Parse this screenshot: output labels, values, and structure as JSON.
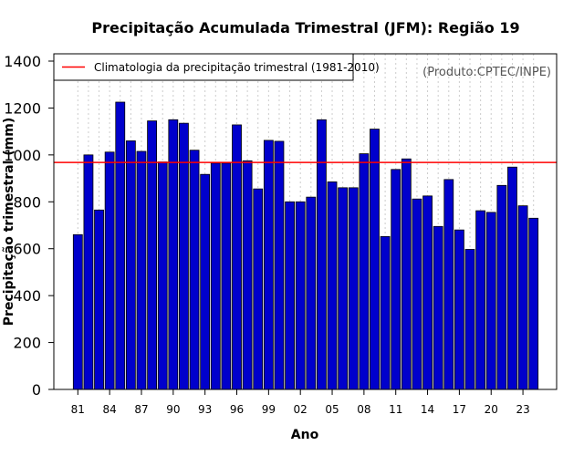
{
  "chart_data": {
    "type": "bar",
    "title": "Precipitação Acumulada Trimestral (JFM): Região 19",
    "xlabel": "Ano",
    "ylabel": "Precipitação trimestral (mm)",
    "credit": "(Produto:CPTEC/INPE)",
    "ylim": [
      0,
      1400
    ],
    "yticks": [
      0,
      200,
      400,
      600,
      800,
      1000,
      1200,
      1400
    ],
    "categories": [
      "1981",
      "1982",
      "1983",
      "1984",
      "1985",
      "1986",
      "1987",
      "1988",
      "1989",
      "1990",
      "1991",
      "1992",
      "1993",
      "1994",
      "1995",
      "1996",
      "1997",
      "1998",
      "1999",
      "2000",
      "2001",
      "2002",
      "2003",
      "2004",
      "2005",
      "2006",
      "2007",
      "2008",
      "2009",
      "2010",
      "2011",
      "2012",
      "2013",
      "2014",
      "2015",
      "2016",
      "2017",
      "2018",
      "2019",
      "2020",
      "2021",
      "2022",
      "2023",
      "2024"
    ],
    "xtick_labels": [
      "81",
      "84",
      "87",
      "90",
      "93",
      "96",
      "99",
      "02",
      "05",
      "08",
      "11",
      "14",
      "17",
      "20",
      "23"
    ],
    "xtick_indices": [
      0,
      3,
      6,
      9,
      12,
      15,
      18,
      21,
      24,
      27,
      30,
      33,
      36,
      39,
      42
    ],
    "values": [
      660,
      1000,
      765,
      1012,
      1225,
      1060,
      1015,
      1145,
      970,
      1150,
      1135,
      1020,
      917,
      965,
      965,
      1128,
      975,
      855,
      1062,
      1058,
      800,
      800,
      820,
      1150,
      885,
      860,
      860,
      1005,
      1110,
      652,
      938,
      983,
      812,
      825,
      695,
      895,
      680,
      597,
      762,
      755,
      870,
      948,
      783,
      730
    ],
    "bar_color": "#0000cc",
    "climatology": 968,
    "climatology_color": "#ff0000",
    "legend": {
      "label": "Climatologia da precipitação trimestral (1981-2010)",
      "position": "top-left"
    },
    "grid": "vertical-dotted"
  }
}
